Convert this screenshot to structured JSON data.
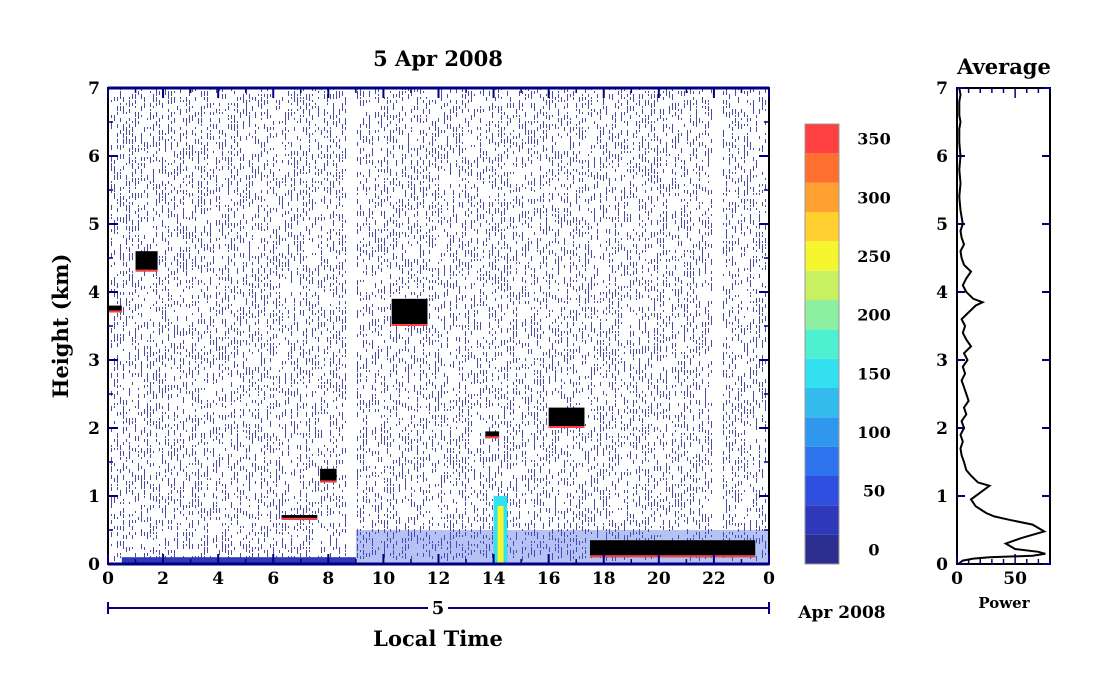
{
  "chart_data": [
    {
      "type": "heatmap",
      "title": "5 Apr 2008",
      "xlabel": "Local Time",
      "ylabel": "Height (km)",
      "xlim": [
        0,
        24
      ],
      "ylim": [
        0,
        7
      ],
      "xticks": [
        "0",
        "2",
        "4",
        "6",
        "8",
        "10",
        "12",
        "14",
        "16",
        "18",
        "20",
        "22",
        "0"
      ],
      "yticks": [
        "0",
        "1",
        "2",
        "3",
        "4",
        "5",
        "6",
        "7"
      ],
      "day_bar_label": "5",
      "date_label": "Apr 2008",
      "colorbar": {
        "levels": [
          "0",
          "50",
          "100",
          "150",
          "200",
          "250",
          "300",
          "350"
        ],
        "range": [
          0,
          375
        ],
        "colors": [
          "#ffffff",
          "#2c2f8f",
          "#2f38b8",
          "#2f4fe0",
          "#2e73ee",
          "#2f98ee",
          "#33bbee",
          "#33e0f0",
          "#4ff0d0",
          "#8cf0a0",
          "#c8f060",
          "#f5f530",
          "#ffd030",
          "#ffa030",
          "#ff7030",
          "#ff4040"
        ]
      },
      "features": [
        {
          "desc": "near-surface layer",
          "t": [
            9.0,
            24.0
          ],
          "h": [
            0.0,
            0.5
          ]
        },
        {
          "desc": "cloud",
          "t": [
            6.3,
            7.6
          ],
          "h": [
            0.65,
            0.72
          ]
        },
        {
          "desc": "cloud",
          "t": [
            7.7,
            8.3
          ],
          "h": [
            1.2,
            1.4
          ]
        },
        {
          "desc": "cloud",
          "t": [
            10.3,
            11.6
          ],
          "h": [
            3.5,
            3.9
          ]
        },
        {
          "desc": "cloud",
          "t": [
            13.7,
            14.2
          ],
          "h": [
            1.85,
            1.95
          ]
        },
        {
          "desc": "cloud",
          "t": [
            1.0,
            1.8
          ],
          "h": [
            4.3,
            4.6
          ]
        },
        {
          "desc": "cloud",
          "t": [
            0.0,
            0.5
          ],
          "h": [
            3.7,
            3.8
          ]
        },
        {
          "desc": "cloud",
          "t": [
            16.0,
            17.3
          ],
          "h": [
            2.0,
            2.3
          ]
        },
        {
          "desc": "low cloud",
          "t": [
            17.5,
            23.5
          ],
          "h": [
            0.1,
            0.35
          ]
        },
        {
          "desc": "convective plume",
          "t": [
            14.0,
            14.5
          ],
          "h": [
            0.0,
            1.0
          ]
        }
      ]
    },
    {
      "type": "line",
      "title": "Average",
      "xlabel": "Power",
      "ylabel": "",
      "xlim": [
        0,
        80
      ],
      "ylim": [
        0,
        7
      ],
      "xticks": [
        "0",
        "50"
      ],
      "yticks": [
        "0",
        "1",
        "2",
        "3",
        "4",
        "5",
        "6",
        "7"
      ],
      "x": [
        1,
        5,
        14,
        28,
        65,
        76,
        70,
        50,
        42,
        55,
        75,
        65,
        45,
        32,
        25,
        16,
        12,
        20,
        28,
        18,
        12,
        8,
        6,
        4,
        3,
        5,
        3,
        6,
        4,
        8,
        6,
        10,
        8,
        6,
        4,
        7,
        5,
        9,
        6,
        12,
        8,
        5,
        7,
        4,
        10,
        16,
        22,
        14,
        8,
        5,
        8,
        12,
        6,
        4,
        3,
        6,
        4,
        3,
        5,
        3,
        2,
        3,
        2,
        3,
        2,
        2,
        3,
        2,
        2,
        3,
        2
      ],
      "y": [
        0.0,
        0.05,
        0.08,
        0.1,
        0.12,
        0.15,
        0.18,
        0.22,
        0.3,
        0.38,
        0.48,
        0.58,
        0.65,
        0.7,
        0.75,
        0.85,
        0.95,
        1.05,
        1.15,
        1.2,
        1.3,
        1.38,
        1.5,
        1.6,
        1.7,
        1.8,
        1.9,
        2.0,
        2.1,
        2.2,
        2.3,
        2.4,
        2.5,
        2.6,
        2.7,
        2.8,
        2.9,
        3.0,
        3.1,
        3.2,
        3.3,
        3.4,
        3.5,
        3.6,
        3.7,
        3.8,
        3.85,
        3.9,
        4.0,
        4.1,
        4.2,
        4.3,
        4.4,
        4.5,
        4.6,
        4.7,
        4.8,
        4.9,
        5.0,
        5.2,
        5.4,
        5.6,
        5.8,
        6.0,
        6.2,
        6.4,
        6.5,
        6.6,
        6.8,
        6.9,
        7.0
      ]
    }
  ]
}
